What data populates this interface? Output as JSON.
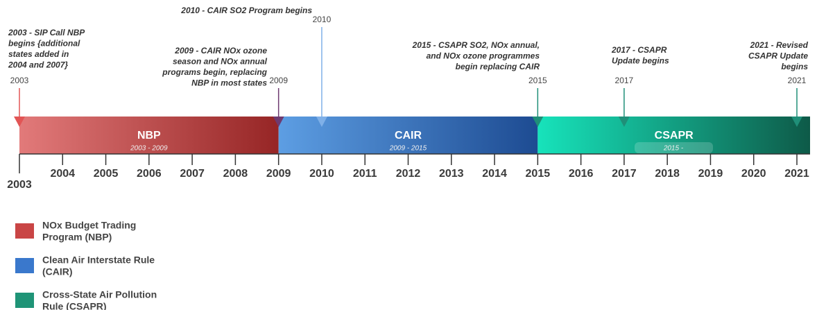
{
  "timeline": {
    "years": [
      "2003",
      "2004",
      "2005",
      "2006",
      "2007",
      "2008",
      "2009",
      "2010",
      "2011",
      "2012",
      "2013",
      "2014",
      "2015",
      "2016",
      "2017",
      "2018",
      "2019",
      "2020",
      "2021"
    ],
    "phases": [
      {
        "name": "NBP",
        "range": "2003 - 2009",
        "start": "2003",
        "end": "2009",
        "colors": [
          "#e27a7a",
          "#962525"
        ]
      },
      {
        "name": "CAIR",
        "range": "2009 - 2015",
        "start": "2009",
        "end": "2015",
        "colors": [
          "#5d9ee3",
          "#1d4b92"
        ]
      },
      {
        "name": "CSAPR",
        "range": "2015 -",
        "start": "2015",
        "end": "2021",
        "colors": [
          "#17e3bb",
          "#0e5a48"
        ]
      }
    ],
    "events": [
      {
        "year": "2003",
        "color": "#e25555",
        "lines": [
          "2003 - SIP Call NBP",
          "begins {additional",
          "states added in",
          "2004 and 2007}"
        ]
      },
      {
        "year": "2009",
        "color": "#6e3a70",
        "lines": [
          "2009 - CAIR NOx ozone",
          "season and NOx annual",
          "programs begin, replacing",
          "NBP in most states"
        ]
      },
      {
        "year": "2010",
        "color": "#7fb0e8",
        "lines": [
          "2010 - CAIR SO2 Program begins"
        ]
      },
      {
        "year": "2015",
        "color": "#1f8f78",
        "lines": [
          "2015 - CSAPR SO2, NOx annual,",
          "and NOx ozone programmes",
          "begin replacing CAIR"
        ]
      },
      {
        "year": "2017",
        "color": "#1f8f78",
        "lines": [
          "2017 - CSAPR",
          "Update begins"
        ]
      },
      {
        "year": "2021",
        "color": "#1f8f78",
        "lines": [
          "2021 - Revised",
          "CSAPR Update",
          "begins"
        ]
      }
    ]
  },
  "legend": [
    {
      "color": "#c94545",
      "lines": [
        "NOx Budget Trading",
        "Program (NBP)"
      ]
    },
    {
      "color": "#3a78cc",
      "lines": [
        "Clean Air Interstate Rule",
        "(CAIR)"
      ]
    },
    {
      "color": "#1f9477",
      "lines": [
        "Cross-State Air Pollution",
        "Rule (CSAPR)"
      ]
    }
  ]
}
